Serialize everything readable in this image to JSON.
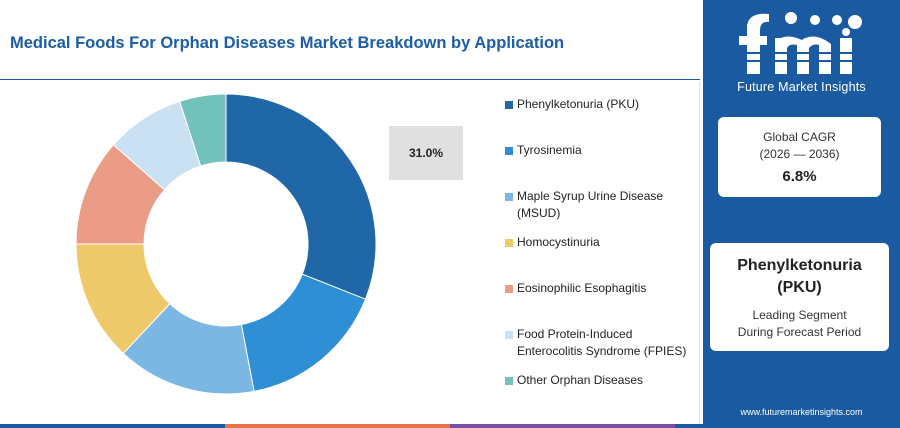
{
  "header": {
    "title": "Medical Foods For Orphan Diseases Market Breakdown by Application"
  },
  "chart_data": {
    "type": "pie",
    "variant": "donut",
    "labels": [
      "Phenylketonuria (PKU)",
      "Tyrosinemia",
      "Maple Syrup Urine Disease (MSUD)",
      "Homocystinuria",
      "Eosinophilic Esophagitis",
      "Food Protein-Induced Enterocolitis Syndrome (FPIES)",
      "Other Orphan Diseases"
    ],
    "legend_lines": [
      [
        "Phenylketonuria (PKU)"
      ],
      [
        "Tyrosinemia"
      ],
      [
        "Maple Syrup Urine Disease",
        "(MSUD)"
      ],
      [
        "Homocystinuria"
      ],
      [
        "Eosinophilic Esophagitis"
      ],
      [
        "Food Protein-Induced",
        "Enterocolitis Syndrome (FPIES)"
      ],
      [
        "Other Orphan Diseases"
      ]
    ],
    "values": [
      31.0,
      16.0,
      15.0,
      13.0,
      11.5,
      8.5,
      5.0
    ],
    "colors": [
      "#1f67a6",
      "#2f8fd4",
      "#7cb7e3",
      "#edc969",
      "#ea9c86",
      "#c9e1f3",
      "#72c2bb"
    ],
    "data_labels": [
      "31.0%"
    ],
    "legend_position": "right"
  },
  "side": {
    "logo_text": "fmi",
    "logo_subtitle": "Future Market Insights",
    "cagr_label": "Global CAGR",
    "cagr_period": "(2026 — 2036)",
    "cagr_value": "6.8%",
    "segment_name_line1": "Phenylketonuria",
    "segment_name_line2": "(PKU)",
    "segment_sub_line1": "Leading Segment",
    "segment_sub_line2": "During Forecast Period",
    "website": "www.futuremarketinsights.com"
  },
  "colors": {
    "brand_blue": "#1a5aa0",
    "title_blue": "#1b5da6",
    "bottom_bar": [
      "#1a5aa0",
      "#e8734a",
      "#7a4fa0",
      "#1a5aa0"
    ]
  }
}
